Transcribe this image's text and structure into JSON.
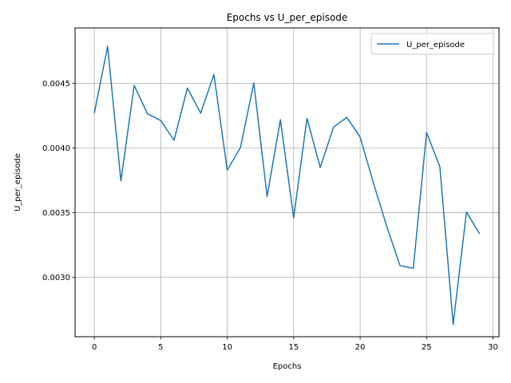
{
  "chart_data": {
    "type": "line",
    "title": "Epochs vs U_per_episode",
    "xlabel": "Epochs",
    "ylabel": "U_per_episode",
    "xlim": [
      -1.45,
      30.45
    ],
    "ylim": [
      0.00254,
      0.00493
    ],
    "x_ticks": [
      0,
      5,
      10,
      15,
      20,
      25,
      30
    ],
    "x_tick_labels": [
      "0",
      "5",
      "10",
      "15",
      "20",
      "25",
      "30"
    ],
    "y_ticks": [
      0.003,
      0.0035,
      0.004,
      0.0045
    ],
    "y_tick_labels": [
      "0.0030",
      "0.0035",
      "0.0040",
      "0.0045"
    ],
    "grid": true,
    "legend_position": "top-right",
    "series": [
      {
        "name": "U_per_episode",
        "color": "#1f77b4",
        "x": [
          0,
          1,
          2,
          3,
          4,
          5,
          6,
          7,
          8,
          9,
          10,
          11,
          12,
          13,
          14,
          15,
          16,
          17,
          18,
          19,
          20,
          21,
          22,
          23,
          24,
          25,
          26,
          27,
          28,
          29
        ],
        "y": [
          0.00427,
          0.004787,
          0.003745,
          0.004485,
          0.004265,
          0.004213,
          0.00406,
          0.004465,
          0.00427,
          0.00457,
          0.00383,
          0.004005,
          0.004505,
          0.003625,
          0.00422,
          0.00346,
          0.00423,
          0.00385,
          0.004163,
          0.004237,
          0.004085,
          0.00373,
          0.003395,
          0.00309,
          0.00307,
          0.00412,
          0.003855,
          0.002635,
          0.003505,
          0.003335
        ]
      }
    ]
  }
}
